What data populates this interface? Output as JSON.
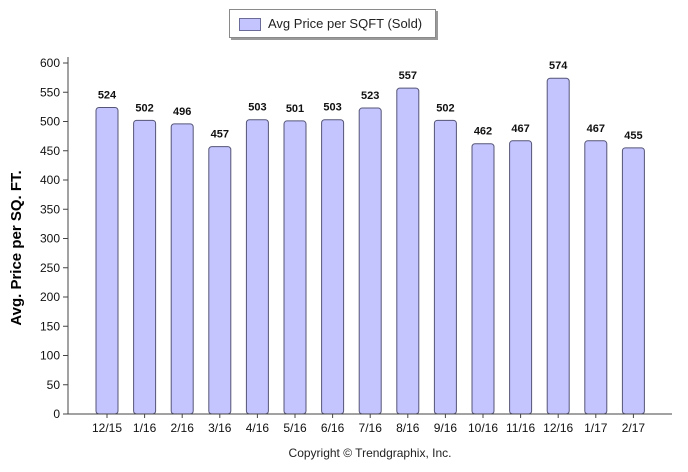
{
  "legend": {
    "label": "Avg Price per SQFT (Sold)"
  },
  "footer": {
    "copyright": "Copyright © Trendgraphix, Inc."
  },
  "colors": {
    "bar_fill": "#c4c4ff",
    "bar_stroke": "#555577",
    "axis": "#444444"
  },
  "chart_data": {
    "type": "bar",
    "categories": [
      "12/15",
      "1/16",
      "2/16",
      "3/16",
      "4/16",
      "5/16",
      "6/16",
      "7/16",
      "8/16",
      "9/16",
      "10/16",
      "11/16",
      "12/16",
      "1/17",
      "2/17"
    ],
    "series": [
      {
        "name": "Avg Price per SQFT (Sold)",
        "values": [
          524,
          502,
          496,
          457,
          503,
          501,
          503,
          523,
          557,
          502,
          462,
          467,
          574,
          467,
          455
        ]
      }
    ],
    "data_labels": [
      "524",
      "502",
      "496",
      "457",
      "503",
      "501",
      "503",
      "523",
      "557",
      "502",
      "462",
      "467",
      "574",
      "467",
      "455"
    ],
    "ylabel": "Avg. Price per SQ. FT.",
    "xlabel": "",
    "ylim": [
      0,
      600
    ],
    "yticks": [
      0,
      50,
      100,
      150,
      200,
      250,
      300,
      350,
      400,
      450,
      500,
      550,
      600
    ],
    "grid": false,
    "legend_position": "top-center"
  }
}
